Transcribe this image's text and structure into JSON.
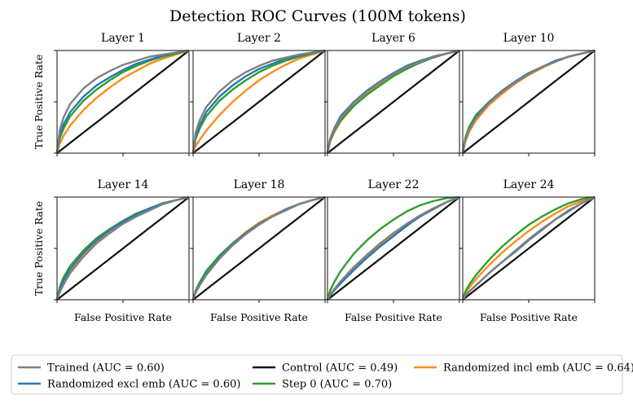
{
  "chart_data": {
    "type": "line",
    "title": "Detection ROC Curves (100M tokens)",
    "xlabel": "False Positive Rate",
    "ylabel": "True Positive Rate",
    "xlim": [
      0,
      1
    ],
    "ylim": [
      0,
      1
    ],
    "grid": false,
    "legend_position": "bottom",
    "series_styles": [
      {
        "key": "trained",
        "color": "#808080"
      },
      {
        "key": "control",
        "color": "#111111"
      },
      {
        "key": "rand_incl",
        "color": "#ff8c1a"
      },
      {
        "key": "rand_excl",
        "color": "#2878b5"
      },
      {
        "key": "step0",
        "color": "#2ca02c"
      }
    ],
    "legend": [
      {
        "label": "Trained (AUC = 0.60)",
        "color": "#808080"
      },
      {
        "label": "Control (AUC = 0.49)",
        "color": "#111111"
      },
      {
        "label": "Randomized incl emb (AUC = 0.64)",
        "color": "#ff8c1a"
      },
      {
        "label": "Randomized excl emb (AUC = 0.60)",
        "color": "#2878b5"
      },
      {
        "label": "Step 0 (AUC = 0.70)",
        "color": "#2ca02c"
      }
    ],
    "x": [
      0,
      0.02,
      0.05,
      0.1,
      0.2,
      0.3,
      0.4,
      0.5,
      0.6,
      0.7,
      0.8,
      0.9,
      1.0
    ],
    "panels": [
      {
        "title": "Layer 1",
        "series": [
          {
            "key": "trained",
            "values": [
              0,
              0.22,
              0.35,
              0.48,
              0.63,
              0.73,
              0.8,
              0.86,
              0.9,
              0.94,
              0.96,
              0.98,
              1
            ]
          },
          {
            "key": "rand_excl",
            "values": [
              0,
              0.17,
              0.28,
              0.4,
              0.55,
              0.66,
              0.74,
              0.81,
              0.87,
              0.91,
              0.95,
              0.98,
              1
            ]
          },
          {
            "key": "step0",
            "values": [
              0,
              0.14,
              0.24,
              0.36,
              0.51,
              0.62,
              0.71,
              0.79,
              0.85,
              0.9,
              0.94,
              0.97,
              1
            ]
          },
          {
            "key": "rand_incl",
            "values": [
              0,
              0.09,
              0.17,
              0.27,
              0.42,
              0.54,
              0.64,
              0.73,
              0.8,
              0.87,
              0.92,
              0.96,
              1
            ]
          },
          {
            "key": "control",
            "values": [
              0,
              0.02,
              0.05,
              0.1,
              0.2,
              0.3,
              0.4,
              0.5,
              0.6,
              0.7,
              0.8,
              0.9,
              1
            ]
          }
        ]
      },
      {
        "title": "Layer 2",
        "series": [
          {
            "key": "trained",
            "values": [
              0,
              0.2,
              0.32,
              0.45,
              0.6,
              0.71,
              0.79,
              0.85,
              0.9,
              0.93,
              0.96,
              0.98,
              1
            ]
          },
          {
            "key": "rand_excl",
            "values": [
              0,
              0.16,
              0.27,
              0.4,
              0.55,
              0.66,
              0.75,
              0.82,
              0.87,
              0.92,
              0.95,
              0.98,
              1
            ]
          },
          {
            "key": "step0",
            "values": [
              0,
              0.14,
              0.24,
              0.36,
              0.51,
              0.62,
              0.71,
              0.79,
              0.85,
              0.9,
              0.94,
              0.97,
              1
            ]
          },
          {
            "key": "rand_incl",
            "values": [
              0,
              0.07,
              0.13,
              0.22,
              0.37,
              0.5,
              0.61,
              0.71,
              0.79,
              0.86,
              0.92,
              0.96,
              1
            ]
          },
          {
            "key": "control",
            "values": [
              0,
              0.02,
              0.05,
              0.1,
              0.2,
              0.3,
              0.4,
              0.5,
              0.6,
              0.7,
              0.8,
              0.9,
              1
            ]
          }
        ]
      },
      {
        "title": "Layer 6",
        "series": [
          {
            "key": "trained",
            "values": [
              0,
              0.13,
              0.23,
              0.34,
              0.49,
              0.6,
              0.69,
              0.77,
              0.84,
              0.89,
              0.94,
              0.97,
              1
            ]
          },
          {
            "key": "rand_excl",
            "values": [
              0,
              0.14,
              0.24,
              0.36,
              0.5,
              0.61,
              0.7,
              0.78,
              0.85,
              0.9,
              0.94,
              0.97,
              1
            ]
          },
          {
            "key": "step0",
            "values": [
              0,
              0.12,
              0.21,
              0.32,
              0.46,
              0.57,
              0.66,
              0.75,
              0.82,
              0.88,
              0.93,
              0.97,
              1
            ]
          },
          {
            "key": "rand_incl",
            "values": [
              0,
              0.11,
              0.2,
              0.31,
              0.46,
              0.58,
              0.68,
              0.76,
              0.83,
              0.89,
              0.94,
              0.97,
              1
            ]
          },
          {
            "key": "control",
            "values": [
              0,
              0.02,
              0.05,
              0.1,
              0.2,
              0.3,
              0.4,
              0.5,
              0.6,
              0.7,
              0.8,
              0.9,
              1
            ]
          }
        ]
      },
      {
        "title": "Layer 10",
        "series": [
          {
            "key": "trained",
            "values": [
              0,
              0.13,
              0.23,
              0.34,
              0.49,
              0.6,
              0.69,
              0.77,
              0.84,
              0.89,
              0.94,
              0.97,
              1
            ]
          },
          {
            "key": "rand_excl",
            "values": [
              0,
              0.13,
              0.23,
              0.35,
              0.5,
              0.61,
              0.7,
              0.78,
              0.84,
              0.9,
              0.94,
              0.97,
              1
            ]
          },
          {
            "key": "step0",
            "values": [
              0,
              0.15,
              0.26,
              0.37,
              0.5,
              0.6,
              0.69,
              0.77,
              0.84,
              0.89,
              0.94,
              0.97,
              1
            ]
          },
          {
            "key": "rand_incl",
            "values": [
              0,
              0.11,
              0.21,
              0.32,
              0.47,
              0.58,
              0.68,
              0.76,
              0.83,
              0.89,
              0.94,
              0.97,
              1
            ]
          },
          {
            "key": "control",
            "values": [
              0,
              0.02,
              0.05,
              0.1,
              0.2,
              0.3,
              0.4,
              0.5,
              0.6,
              0.7,
              0.8,
              0.9,
              1
            ]
          }
        ]
      },
      {
        "title": "Layer 14",
        "series": [
          {
            "key": "trained",
            "values": [
              0,
              0.07,
              0.15,
              0.26,
              0.42,
              0.55,
              0.65,
              0.74,
              0.81,
              0.87,
              0.93,
              0.97,
              1
            ]
          },
          {
            "key": "rand_excl",
            "values": [
              0,
              0.1,
              0.19,
              0.3,
              0.46,
              0.58,
              0.68,
              0.76,
              0.83,
              0.89,
              0.94,
              0.97,
              1
            ]
          },
          {
            "key": "step0",
            "values": [
              0,
              0.12,
              0.22,
              0.33,
              0.48,
              0.6,
              0.69,
              0.77,
              0.84,
              0.89,
              0.94,
              0.97,
              1
            ]
          },
          {
            "key": "rand_incl",
            "values": [
              0,
              0.1,
              0.19,
              0.29,
              0.44,
              0.56,
              0.66,
              0.75,
              0.82,
              0.88,
              0.93,
              0.97,
              1
            ]
          },
          {
            "key": "control",
            "values": [
              0,
              0.02,
              0.05,
              0.1,
              0.2,
              0.3,
              0.4,
              0.5,
              0.6,
              0.7,
              0.8,
              0.9,
              1
            ]
          }
        ]
      },
      {
        "title": "Layer 18",
        "series": [
          {
            "key": "trained",
            "values": [
              0,
              0.07,
              0.14,
              0.24,
              0.4,
              0.53,
              0.64,
              0.73,
              0.81,
              0.87,
              0.93,
              0.97,
              1
            ]
          },
          {
            "key": "rand_excl",
            "values": [
              0,
              0.08,
              0.15,
              0.25,
              0.41,
              0.54,
              0.65,
              0.74,
              0.81,
              0.88,
              0.93,
              0.97,
              1
            ]
          },
          {
            "key": "step0",
            "values": [
              0,
              0.09,
              0.17,
              0.28,
              0.43,
              0.55,
              0.65,
              0.74,
              0.81,
              0.87,
              0.93,
              0.97,
              1
            ]
          },
          {
            "key": "rand_incl",
            "values": [
              0,
              0.09,
              0.17,
              0.27,
              0.43,
              0.55,
              0.66,
              0.75,
              0.82,
              0.88,
              0.93,
              0.97,
              1
            ]
          },
          {
            "key": "control",
            "values": [
              0,
              0.02,
              0.05,
              0.1,
              0.2,
              0.3,
              0.4,
              0.5,
              0.6,
              0.7,
              0.8,
              0.9,
              1
            ]
          }
        ]
      },
      {
        "title": "Layer 22",
        "series": [
          {
            "key": "trained",
            "values": [
              0,
              0.05,
              0.1,
              0.18,
              0.32,
              0.44,
              0.55,
              0.65,
              0.74,
              0.82,
              0.89,
              0.95,
              1
            ]
          },
          {
            "key": "rand_excl",
            "values": [
              0,
              0.04,
              0.09,
              0.16,
              0.29,
              0.41,
              0.52,
              0.62,
              0.72,
              0.81,
              0.88,
              0.95,
              1
            ]
          },
          {
            "key": "step0",
            "values": [
              0,
              0.09,
              0.17,
              0.28,
              0.45,
              0.58,
              0.69,
              0.78,
              0.86,
              0.92,
              0.96,
              0.99,
              1
            ]
          },
          {
            "key": "rand_incl",
            "values": [
              0,
              0.05,
              0.1,
              0.17,
              0.31,
              0.43,
              0.54,
              0.64,
              0.73,
              0.82,
              0.89,
              0.95,
              1
            ]
          },
          {
            "key": "control",
            "values": [
              0,
              0.02,
              0.05,
              0.1,
              0.2,
              0.3,
              0.4,
              0.5,
              0.6,
              0.7,
              0.8,
              0.9,
              1
            ]
          }
        ]
      },
      {
        "title": "Layer 24",
        "series": [
          {
            "key": "trained",
            "values": [
              0,
              0.04,
              0.08,
              0.14,
              0.26,
              0.37,
              0.48,
              0.59,
              0.69,
              0.78,
              0.87,
              0.94,
              1
            ]
          },
          {
            "key": "rand_excl",
            "values": [
              0,
              0.04,
              0.08,
              0.14,
              0.26,
              0.37,
              0.47,
              0.58,
              0.68,
              0.78,
              0.86,
              0.94,
              1
            ]
          },
          {
            "key": "step0",
            "values": [
              0,
              0.08,
              0.15,
              0.24,
              0.39,
              0.52,
              0.63,
              0.73,
              0.81,
              0.88,
              0.94,
              0.98,
              1
            ]
          },
          {
            "key": "rand_incl",
            "values": [
              0,
              0.06,
              0.12,
              0.2,
              0.34,
              0.46,
              0.57,
              0.67,
              0.76,
              0.84,
              0.91,
              0.96,
              1
            ]
          },
          {
            "key": "control",
            "values": [
              0,
              0.02,
              0.05,
              0.1,
              0.2,
              0.3,
              0.4,
              0.5,
              0.6,
              0.7,
              0.8,
              0.9,
              1
            ]
          }
        ]
      }
    ]
  }
}
